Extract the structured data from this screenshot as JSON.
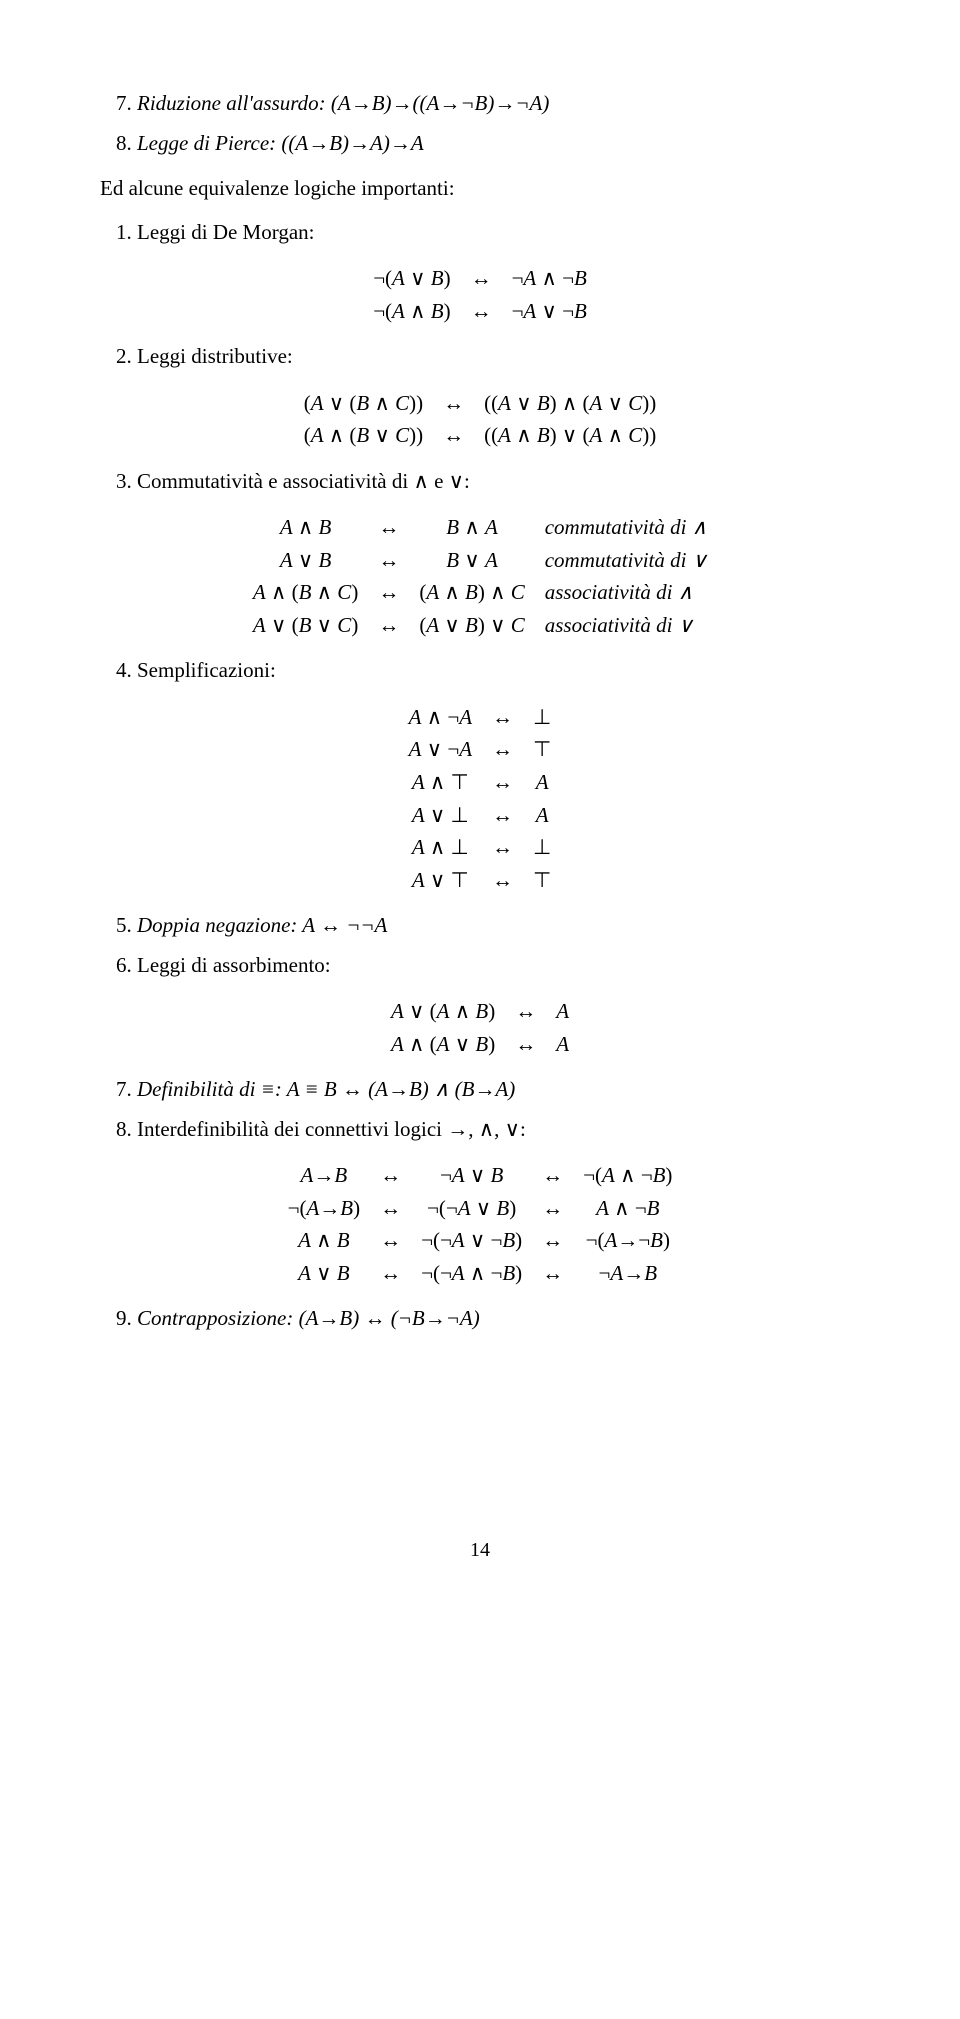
{
  "items": {
    "n7": "7.",
    "n8": "8.",
    "n1": "1.",
    "n2": "2.",
    "n3": "3.",
    "n4": "4.",
    "n5": "5.",
    "n6": "6.",
    "n7b": "7.",
    "n8b": "8.",
    "n9": "9.",
    "riduzione": "Riduzione all'assurdo: (A→B)→((A→¬B)→¬A)",
    "pierce": "Legge di Pierce: ((A→B)→A)→A",
    "intro": "Ed alcune equivalenze logiche importanti:",
    "demorgan": "Leggi di De Morgan:",
    "distributive": "Leggi distributive:",
    "comm_assoc": "Commutatività e associatività di ∧ e ∨:",
    "semplificazioni": "Semplificazioni:",
    "doppia_neg": "Doppia negazione: A  ↔  ¬¬A",
    "assorbimento": "Leggi di assorbimento:",
    "definibilita": "Definibilità di ≡:  A ≡ B  ↔  (A→B) ∧ (B→A)",
    "interdef": "Interdefinibilità dei connettivi logici →, ∧, ∨:",
    "contrapposizione": "Contrapposizione:   (A→B)  ↔  (¬B→¬A)"
  },
  "tables": {
    "demorgan_rows": [
      [
        "¬(A ∨ B)",
        "↔",
        "¬A ∧ ¬B"
      ],
      [
        "¬(A ∧ B)",
        "↔",
        "¬A ∨ ¬B"
      ]
    ],
    "distributive_rows": [
      [
        "(A ∨ (B ∧ C))",
        "↔",
        "((A ∨ B) ∧ (A ∨ C))"
      ],
      [
        "(A ∧ (B ∨ C))",
        "↔",
        "((A ∧ B) ∨ (A ∧ C))"
      ]
    ],
    "comm_assoc_rows": [
      [
        "A ∧ B",
        "↔",
        "B ∧ A",
        "commutatività di ∧"
      ],
      [
        "A ∨ B",
        "↔",
        "B ∨ A",
        "commutatività di ∨"
      ],
      [
        "A ∧ (B ∧ C)",
        "↔",
        "(A ∧ B) ∧ C",
        "associatività di ∧"
      ],
      [
        "A ∨ (B ∨ C)",
        "↔",
        "(A ∨ B) ∨ C",
        "associatività di ∨"
      ]
    ],
    "sempl_rows": [
      [
        "A ∧ ¬A",
        "↔",
        "⊥"
      ],
      [
        "A ∨ ¬A",
        "↔",
        "⊤"
      ],
      [
        "A ∧ ⊤",
        "↔",
        "A"
      ],
      [
        "A ∨ ⊥",
        "↔",
        "A"
      ],
      [
        "A ∧ ⊥",
        "↔",
        "⊥"
      ],
      [
        "A ∨ ⊤",
        "↔",
        "⊤"
      ]
    ],
    "assorb_rows": [
      [
        "A ∨ (A ∧ B)",
        "↔",
        "A"
      ],
      [
        "A ∧ (A ∨ B)",
        "↔",
        "A"
      ]
    ],
    "interdef_rows": [
      [
        "A→B",
        "↔",
        "¬A ∨ B",
        "↔",
        "¬(A ∧ ¬B)"
      ],
      [
        "¬(A→B)",
        "↔",
        "¬(¬A ∨ B)",
        "↔",
        "A ∧ ¬B"
      ],
      [
        "A ∧ B",
        "↔",
        "¬(¬A ∨ ¬B)",
        "↔",
        "¬(A→¬B)"
      ],
      [
        "A ∨ B",
        "↔",
        "¬(¬A ∧ ¬B)",
        "↔",
        "¬A→B"
      ]
    ]
  },
  "page_number": "14"
}
